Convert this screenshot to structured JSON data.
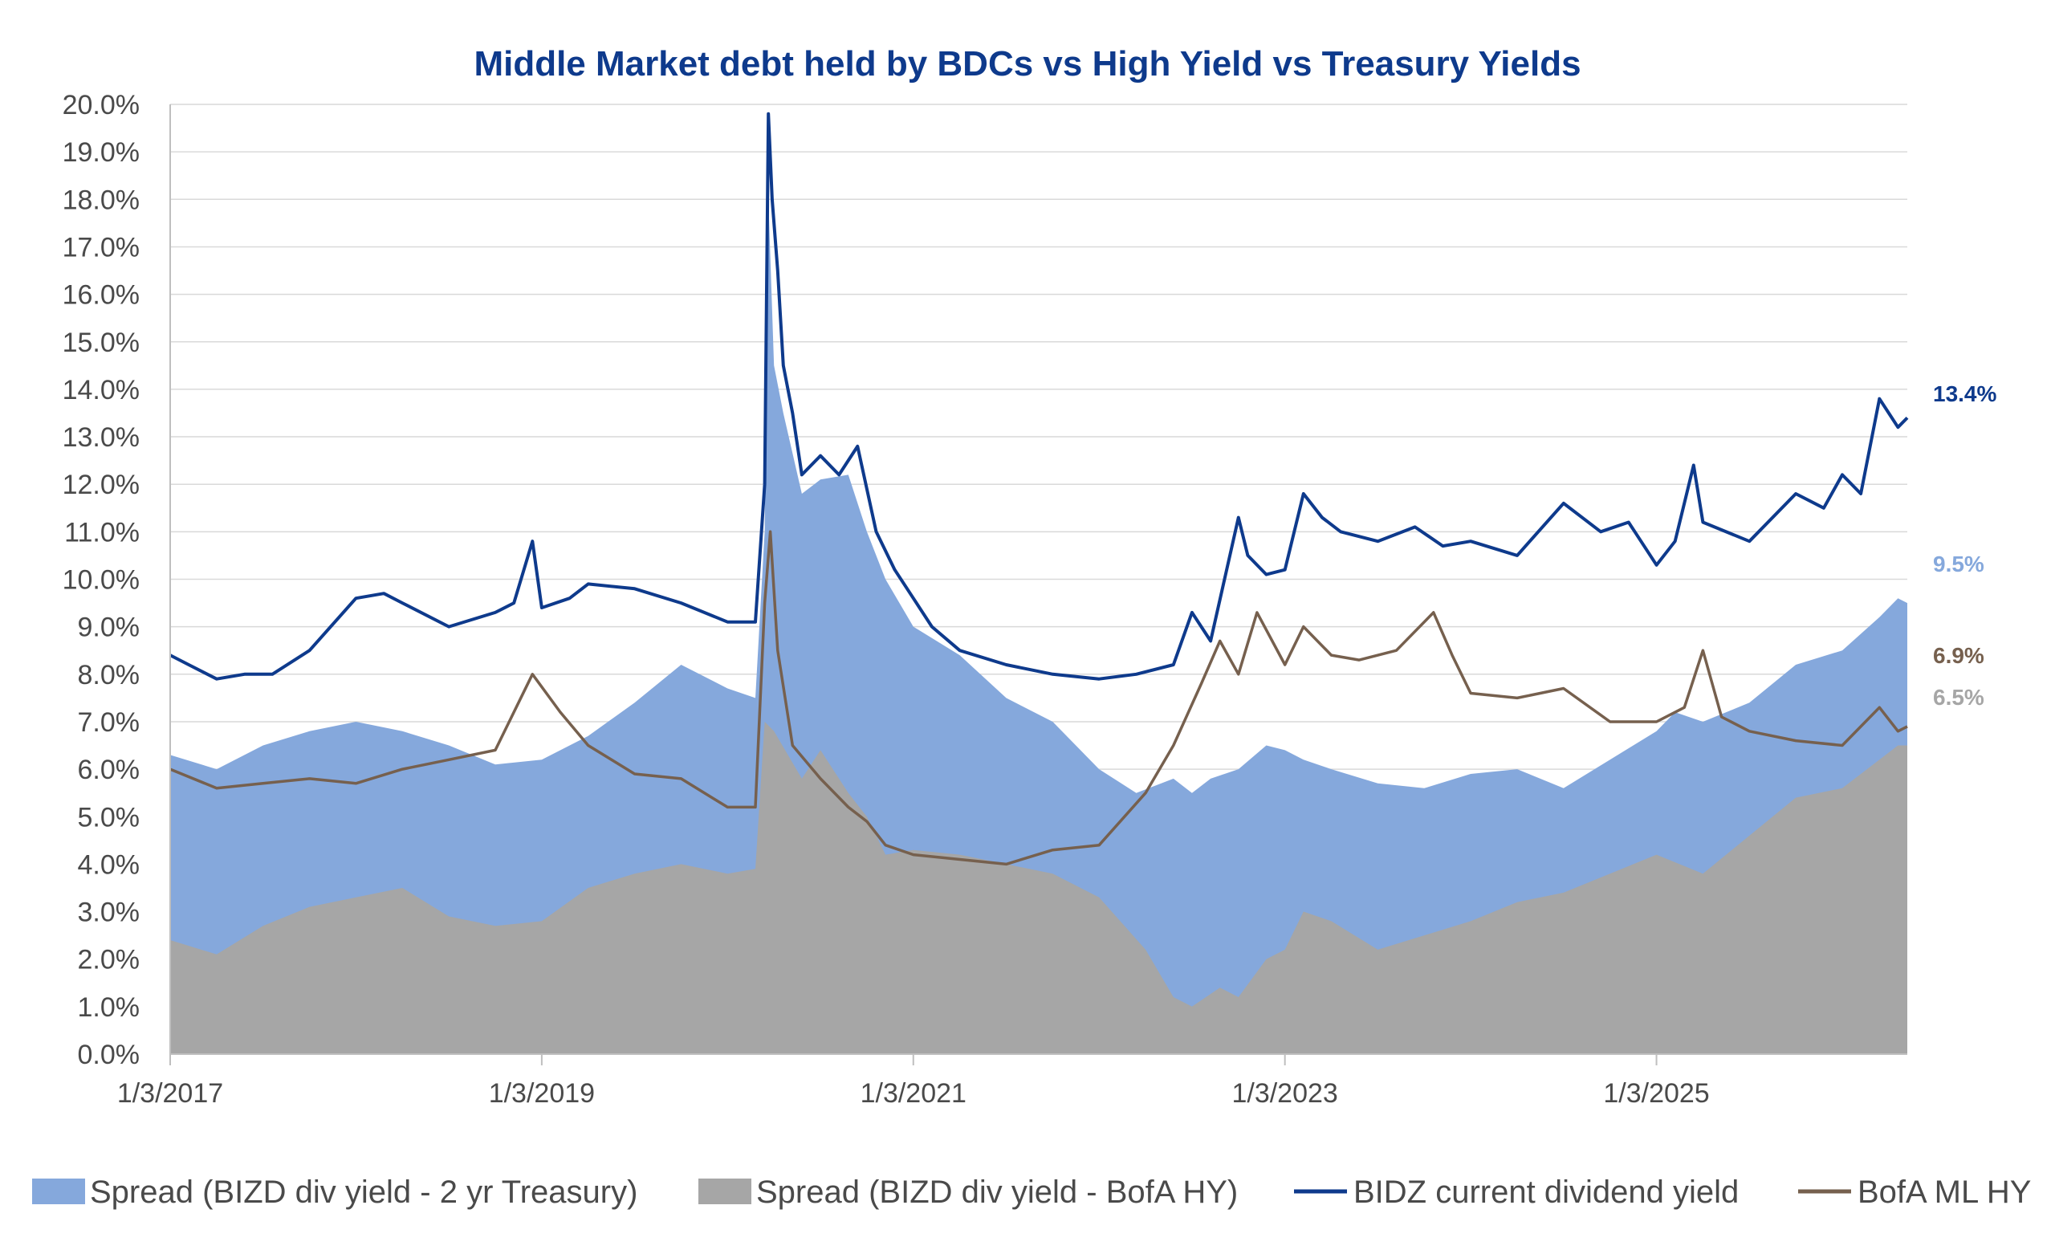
{
  "chart_data": {
    "type": "area",
    "title": "Middle Market debt held by BDCs vs High Yield vs Treasury Yields",
    "xlabel": "",
    "ylabel": "",
    "x_tick_labels": [
      "1/3/2017",
      "1/3/2019",
      "1/3/2021",
      "1/3/2023",
      "1/3/2025"
    ],
    "x_ticks": [
      2017.0,
      2019.0,
      2021.0,
      2023.0,
      2025.0
    ],
    "xlim": [
      2017.0,
      2026.35
    ],
    "ylim": [
      0,
      20
    ],
    "y_tick_labels": [
      "0.0%",
      "1.0%",
      "2.0%",
      "3.0%",
      "4.0%",
      "5.0%",
      "6.0%",
      "7.0%",
      "8.0%",
      "9.0%",
      "10.0%",
      "11.0%",
      "12.0%",
      "13.0%",
      "14.0%",
      "15.0%",
      "16.0%",
      "17.0%",
      "18.0%",
      "19.0%",
      "20.0%"
    ],
    "legend_position": "bottom",
    "grid": true,
    "colors": {
      "spread_treasury": "#85a8dc",
      "spread_hy": "#a6a6a6",
      "bizd_yield": "#0e3a8c",
      "bofa_hy": "#76604e",
      "gridline": "#d9d9d9",
      "axis": "#bfbfbf"
    },
    "series": [
      {
        "name": "Spread (BIZD div yield - 2 yr Treasury)",
        "kind": "area",
        "x": [
          2017.0,
          2017.25,
          2017.5,
          2017.75,
          2018.0,
          2018.25,
          2018.5,
          2018.75,
          2019.0,
          2019.25,
          2019.5,
          2019.75,
          2020.0,
          2020.15,
          2020.2,
          2020.22,
          2020.25,
          2020.3,
          2020.4,
          2020.5,
          2020.65,
          2020.75,
          2020.85,
          2021.0,
          2021.25,
          2021.5,
          2021.75,
          2022.0,
          2022.2,
          2022.4,
          2022.5,
          2022.6,
          2022.75,
          2022.9,
          2023.0,
          2023.1,
          2023.25,
          2023.5,
          2023.75,
          2024.0,
          2024.25,
          2024.5,
          2024.75,
          2025.0,
          2025.1,
          2025.25,
          2025.5,
          2025.75,
          2026.0,
          2026.2,
          2026.3,
          2026.35
        ],
        "values": [
          6.3,
          6.0,
          6.5,
          6.8,
          7.0,
          6.8,
          6.5,
          6.1,
          6.2,
          6.7,
          7.4,
          8.2,
          7.7,
          7.5,
          11.0,
          18.0,
          14.5,
          13.5,
          11.8,
          12.1,
          12.2,
          11.0,
          10.0,
          9.0,
          8.4,
          7.5,
          7.0,
          6.0,
          5.5,
          5.8,
          5.5,
          5.8,
          6.0,
          6.5,
          6.4,
          6.2,
          6.0,
          5.7,
          5.6,
          5.9,
          6.0,
          5.6,
          6.2,
          6.8,
          7.2,
          7.0,
          7.4,
          8.2,
          8.5,
          9.2,
          9.6,
          9.5
        ]
      },
      {
        "name": "Spread (BIZD div yield - BofA HY)",
        "kind": "area",
        "x": [
          2017.0,
          2017.25,
          2017.5,
          2017.75,
          2018.0,
          2018.25,
          2018.5,
          2018.75,
          2019.0,
          2019.25,
          2019.5,
          2019.75,
          2020.0,
          2020.15,
          2020.2,
          2020.25,
          2020.4,
          2020.5,
          2020.65,
          2020.75,
          2020.85,
          2021.0,
          2021.25,
          2021.5,
          2021.75,
          2022.0,
          2022.25,
          2022.4,
          2022.5,
          2022.65,
          2022.75,
          2022.9,
          2023.0,
          2023.1,
          2023.25,
          2023.5,
          2023.75,
          2024.0,
          2024.25,
          2024.5,
          2024.75,
          2025.0,
          2025.25,
          2025.5,
          2025.75,
          2026.0,
          2026.2,
          2026.3,
          2026.35
        ],
        "values": [
          2.4,
          2.1,
          2.7,
          3.1,
          3.3,
          3.5,
          2.9,
          2.7,
          2.8,
          3.5,
          3.8,
          4.0,
          3.8,
          3.9,
          7.0,
          6.8,
          5.8,
          6.4,
          5.5,
          5.0,
          4.2,
          4.3,
          4.2,
          4.0,
          3.8,
          3.3,
          2.2,
          1.2,
          1.0,
          1.4,
          1.2,
          2.0,
          2.2,
          3.0,
          2.8,
          2.2,
          2.5,
          2.8,
          3.2,
          3.4,
          3.8,
          4.2,
          3.8,
          4.6,
          5.4,
          5.6,
          6.2,
          6.5,
          6.5
        ]
      },
      {
        "name": "BIDZ current dividend yield",
        "kind": "line",
        "x": [
          2017.0,
          2017.1,
          2017.25,
          2017.4,
          2017.55,
          2017.75,
          2018.0,
          2018.15,
          2018.25,
          2018.5,
          2018.75,
          2018.85,
          2018.95,
          2019.0,
          2019.15,
          2019.25,
          2019.5,
          2019.75,
          2020.0,
          2020.15,
          2020.2,
          2020.22,
          2020.24,
          2020.27,
          2020.3,
          2020.35,
          2020.4,
          2020.5,
          2020.6,
          2020.7,
          2020.8,
          2020.9,
          2021.0,
          2021.1,
          2021.25,
          2021.5,
          2021.75,
          2022.0,
          2022.2,
          2022.4,
          2022.5,
          2022.6,
          2022.75,
          2022.8,
          2022.9,
          2023.0,
          2023.1,
          2023.2,
          2023.3,
          2023.5,
          2023.7,
          2023.85,
          2024.0,
          2024.25,
          2024.5,
          2024.7,
          2024.85,
          2025.0,
          2025.1,
          2025.2,
          2025.25,
          2025.5,
          2025.75,
          2025.9,
          2026.0,
          2026.1,
          2026.2,
          2026.25,
          2026.3,
          2026.35
        ],
        "values": [
          8.4,
          8.2,
          7.9,
          8.0,
          8.0,
          8.5,
          9.6,
          9.7,
          9.5,
          9.0,
          9.3,
          9.5,
          10.8,
          9.4,
          9.6,
          9.9,
          9.8,
          9.5,
          9.1,
          9.1,
          12.0,
          19.8,
          18.0,
          16.5,
          14.5,
          13.5,
          12.2,
          12.6,
          12.2,
          12.8,
          11.0,
          10.2,
          9.6,
          9.0,
          8.5,
          8.2,
          8.0,
          7.9,
          8.0,
          8.2,
          9.3,
          8.7,
          11.3,
          10.5,
          10.1,
          10.2,
          11.8,
          11.3,
          11.0,
          10.8,
          11.1,
          10.7,
          10.8,
          10.5,
          11.6,
          11.0,
          11.2,
          10.3,
          10.8,
          12.4,
          11.2,
          10.8,
          11.8,
          11.5,
          12.2,
          11.8,
          13.8,
          13.5,
          13.2,
          13.4
        ]
      },
      {
        "name": "BofA ML HY",
        "kind": "line",
        "x": [
          2017.0,
          2017.25,
          2017.5,
          2017.75,
          2018.0,
          2018.25,
          2018.5,
          2018.75,
          2018.95,
          2019.1,
          2019.25,
          2019.5,
          2019.75,
          2020.0,
          2020.15,
          2020.2,
          2020.23,
          2020.27,
          2020.35,
          2020.5,
          2020.65,
          2020.75,
          2020.85,
          2021.0,
          2021.25,
          2021.5,
          2021.75,
          2022.0,
          2022.25,
          2022.4,
          2022.55,
          2022.65,
          2022.75,
          2022.85,
          2023.0,
          2023.1,
          2023.25,
          2023.4,
          2023.6,
          2023.8,
          2023.9,
          2024.0,
          2024.25,
          2024.5,
          2024.75,
          2025.0,
          2025.15,
          2025.25,
          2025.35,
          2025.5,
          2025.75,
          2026.0,
          2026.2,
          2026.3,
          2026.35
        ],
        "values": [
          6.0,
          5.6,
          5.7,
          5.8,
          5.7,
          6.0,
          6.2,
          6.4,
          8.0,
          7.2,
          6.5,
          5.9,
          5.8,
          5.2,
          5.2,
          9.5,
          11.0,
          8.5,
          6.5,
          5.8,
          5.2,
          4.9,
          4.4,
          4.2,
          4.1,
          4.0,
          4.3,
          4.4,
          5.5,
          6.5,
          7.8,
          8.7,
          8.0,
          9.3,
          8.2,
          9.0,
          8.4,
          8.3,
          8.5,
          9.3,
          8.4,
          7.6,
          7.5,
          7.7,
          7.0,
          7.0,
          7.3,
          8.5,
          7.1,
          6.8,
          6.6,
          6.5,
          7.3,
          6.8,
          6.9
        ]
      }
    ],
    "end_labels": [
      {
        "text": "13.4%",
        "color": "#0e3a8c",
        "value": 13.4
      },
      {
        "text": "9.5%",
        "color": "#85a8dc",
        "value": 9.5
      },
      {
        "text": "6.9%",
        "color": "#76604e",
        "value": 6.9
      },
      {
        "text": "6.5%",
        "color": "#a6a6a6",
        "value": 6.5
      }
    ]
  }
}
